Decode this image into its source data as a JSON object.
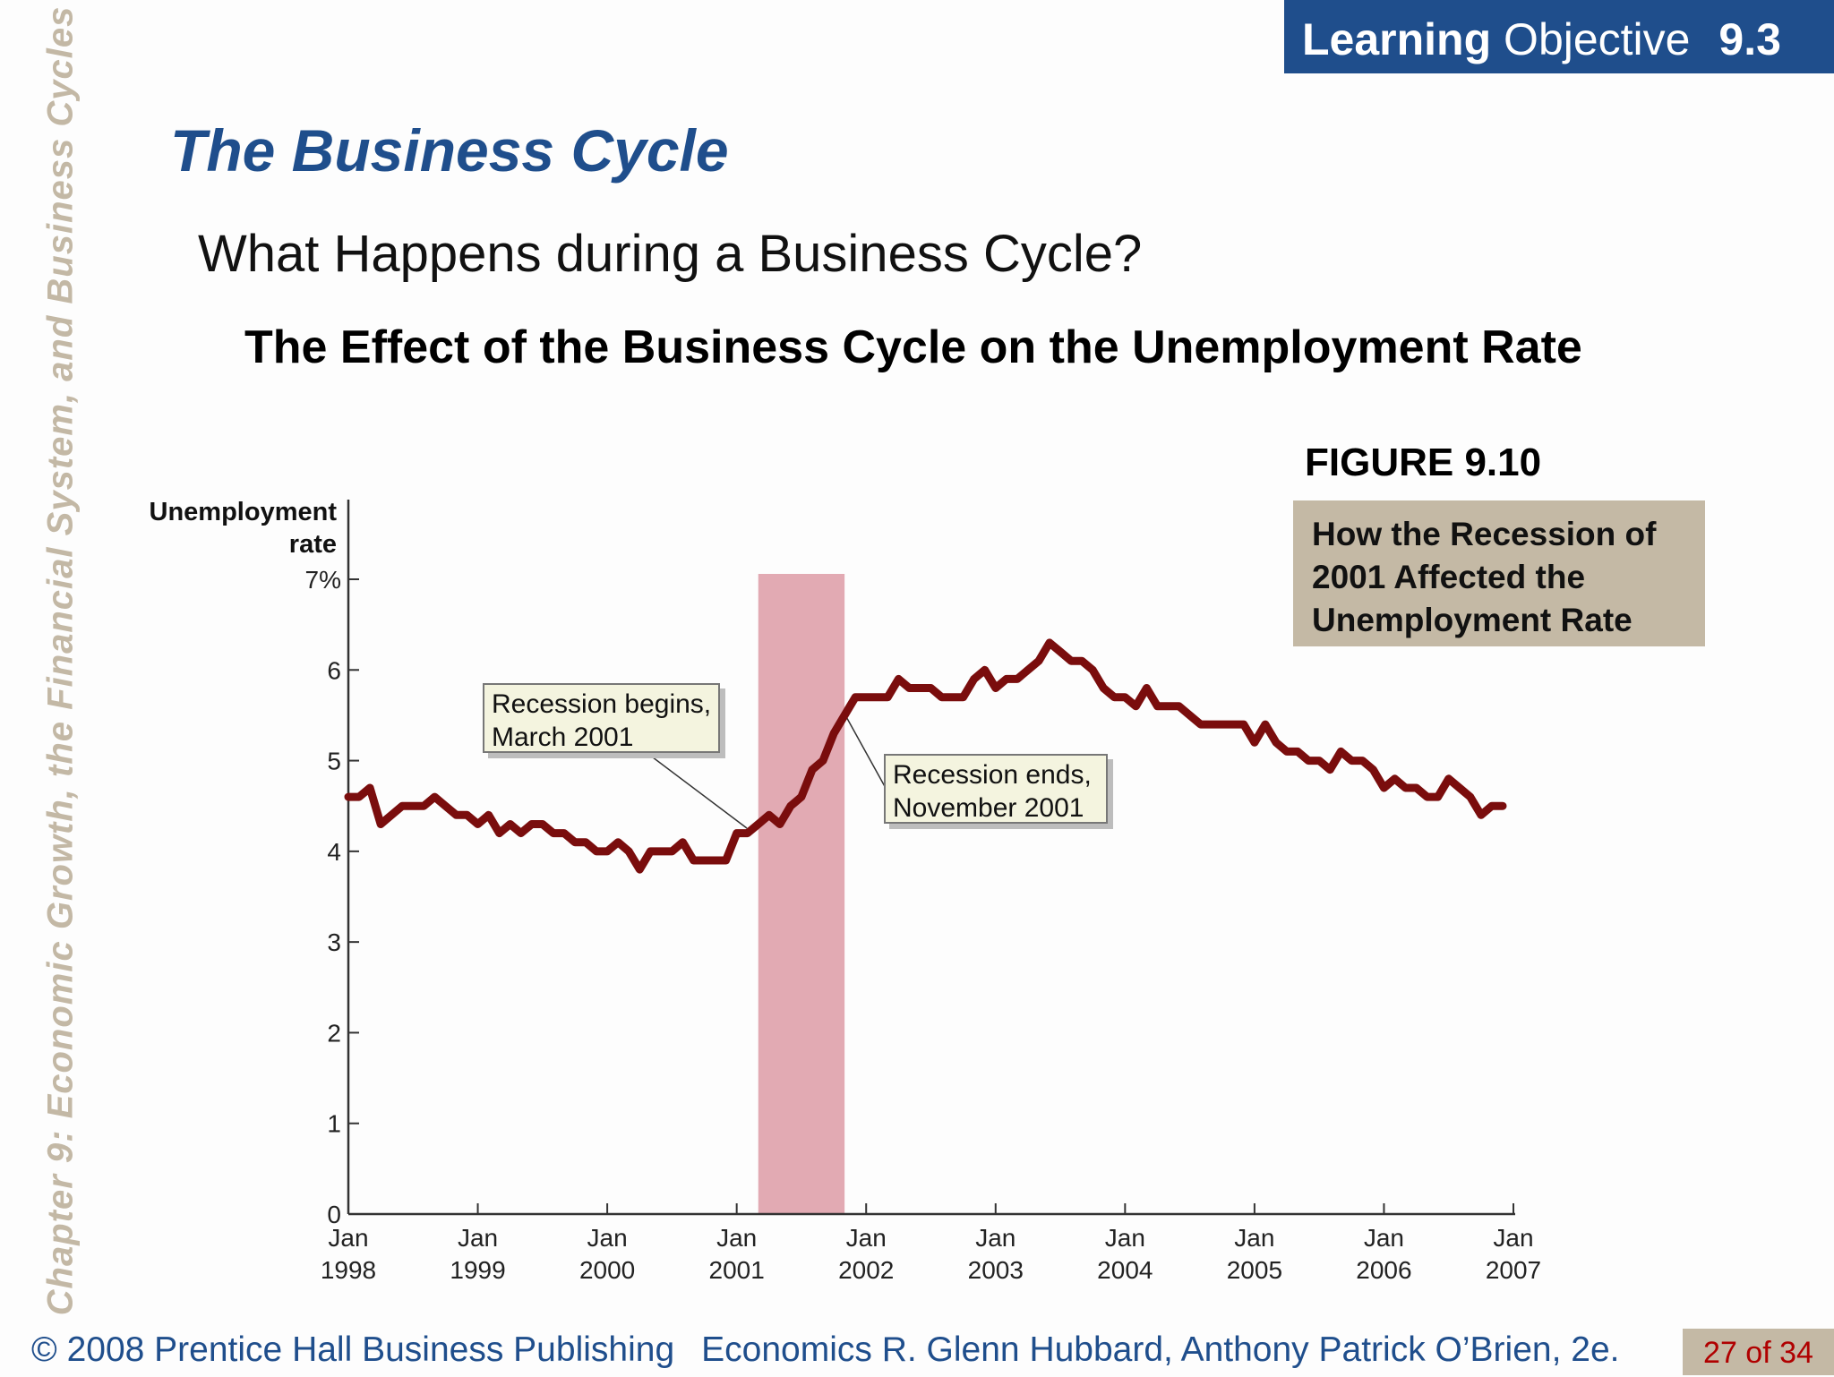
{
  "sidebar": {
    "chapter_title": "Chapter 9:  Economic Growth, the Financial System, and Business Cycles"
  },
  "header": {
    "learning_word": "Learning",
    "objective_word": "Objective",
    "objective_number": "9.3"
  },
  "slide": {
    "title": "The Business Cycle",
    "subtitle": "What Happens during a Business Cycle?",
    "chart_heading": "The Effect of the Business Cycle on the Unemployment Rate",
    "figure_label": "FIGURE 9.10",
    "figure_caption": "How the Recession of 2001 Affected  the Unemployment Rate"
  },
  "footer": {
    "copyright": "© 2008 Prentice Hall Business Publishing",
    "book": "Economics  R. Glenn Hubbard, Anthony Patrick O’Brien, 2e.",
    "page": "27 of 34"
  },
  "colors": {
    "accent": "#1f4e8c",
    "line": "#7a0d0d",
    "recession": "#e2aab3",
    "caption_bg": "#c4b9a5"
  },
  "chart_data": {
    "type": "line",
    "ylabel_line1": "Unemployment",
    "ylabel_line2": "rate",
    "ylim": [
      0,
      7
    ],
    "y_ticks": [
      "0",
      "1",
      "2",
      "3",
      "4",
      "5",
      "6",
      "7%"
    ],
    "x_ticks": [
      {
        "month": "Jan",
        "year": "1998"
      },
      {
        "month": "Jan",
        "year": "1999"
      },
      {
        "month": "Jan",
        "year": "2000"
      },
      {
        "month": "Jan",
        "year": "2001"
      },
      {
        "month": "Jan",
        "year": "2002"
      },
      {
        "month": "Jan",
        "year": "2003"
      },
      {
        "month": "Jan",
        "year": "2004"
      },
      {
        "month": "Jan",
        "year": "2005"
      },
      {
        "month": "Jan",
        "year": "2006"
      },
      {
        "month": "Jan",
        "year": "2007"
      }
    ],
    "recession": {
      "start": "2001-03",
      "end": "2001-11"
    },
    "annotations": {
      "begins_line1": "Recession begins,",
      "begins_line2": "March 2001",
      "ends_line1": "Recession ends,",
      "ends_line2": "November 2001"
    },
    "series": [
      {
        "x": [
          "1998-01",
          "1998-02",
          "1998-03",
          "1998-04",
          "1998-05",
          "1998-06",
          "1998-07",
          "1998-08",
          "1998-09",
          "1998-10",
          "1998-11",
          "1998-12",
          "1999-01",
          "1999-02",
          "1999-03",
          "1999-04",
          "1999-05",
          "1999-06",
          "1999-07",
          "1999-08",
          "1999-09",
          "1999-10",
          "1999-11",
          "1999-12",
          "2000-01",
          "2000-02",
          "2000-03",
          "2000-04",
          "2000-05",
          "2000-06",
          "2000-07",
          "2000-08",
          "2000-09",
          "2000-10",
          "2000-11",
          "2000-12",
          "2001-01",
          "2001-02",
          "2001-03",
          "2001-04",
          "2001-05",
          "2001-06",
          "2001-07",
          "2001-08",
          "2001-09",
          "2001-10",
          "2001-11",
          "2001-12",
          "2002-01",
          "2002-02",
          "2002-03",
          "2002-04",
          "2002-05",
          "2002-06",
          "2002-07",
          "2002-08",
          "2002-09",
          "2002-10",
          "2002-11",
          "2002-12",
          "2003-01",
          "2003-02",
          "2003-03",
          "2003-04",
          "2003-05",
          "2003-06",
          "2003-07",
          "2003-08",
          "2003-09",
          "2003-10",
          "2003-11",
          "2003-12",
          "2004-01",
          "2004-02",
          "2004-03",
          "2004-04",
          "2004-05",
          "2004-06",
          "2004-07",
          "2004-08",
          "2004-09",
          "2004-10",
          "2004-11",
          "2004-12",
          "2005-01",
          "2005-02",
          "2005-03",
          "2005-04",
          "2005-05",
          "2005-06",
          "2005-07",
          "2005-08",
          "2005-09",
          "2005-10",
          "2005-11",
          "2005-12",
          "2006-01",
          "2006-02",
          "2006-03",
          "2006-04",
          "2006-05",
          "2006-06",
          "2006-07",
          "2006-08",
          "2006-09",
          "2006-10",
          "2006-11",
          "2006-12"
        ],
        "values": [
          4.6,
          4.6,
          4.7,
          4.3,
          4.4,
          4.5,
          4.5,
          4.5,
          4.6,
          4.5,
          4.4,
          4.4,
          4.3,
          4.4,
          4.2,
          4.3,
          4.2,
          4.3,
          4.3,
          4.2,
          4.2,
          4.1,
          4.1,
          4.0,
          4.0,
          4.1,
          4.0,
          3.8,
          4.0,
          4.0,
          4.0,
          4.1,
          3.9,
          3.9,
          3.9,
          3.9,
          4.2,
          4.2,
          4.3,
          4.4,
          4.3,
          4.5,
          4.6,
          4.9,
          5.0,
          5.3,
          5.5,
          5.7,
          5.7,
          5.7,
          5.7,
          5.9,
          5.8,
          5.8,
          5.8,
          5.7,
          5.7,
          5.7,
          5.9,
          6.0,
          5.8,
          5.9,
          5.9,
          6.0,
          6.1,
          6.3,
          6.2,
          6.1,
          6.1,
          6.0,
          5.8,
          5.7,
          5.7,
          5.6,
          5.8,
          5.6,
          5.6,
          5.6,
          5.5,
          5.4,
          5.4,
          5.4,
          5.4,
          5.4,
          5.2,
          5.4,
          5.2,
          5.1,
          5.1,
          5.0,
          5.0,
          4.9,
          5.1,
          5.0,
          5.0,
          4.9,
          4.7,
          4.8,
          4.7,
          4.7,
          4.6,
          4.6,
          4.8,
          4.7,
          4.6,
          4.4,
          4.5,
          4.5
        ]
      }
    ]
  }
}
